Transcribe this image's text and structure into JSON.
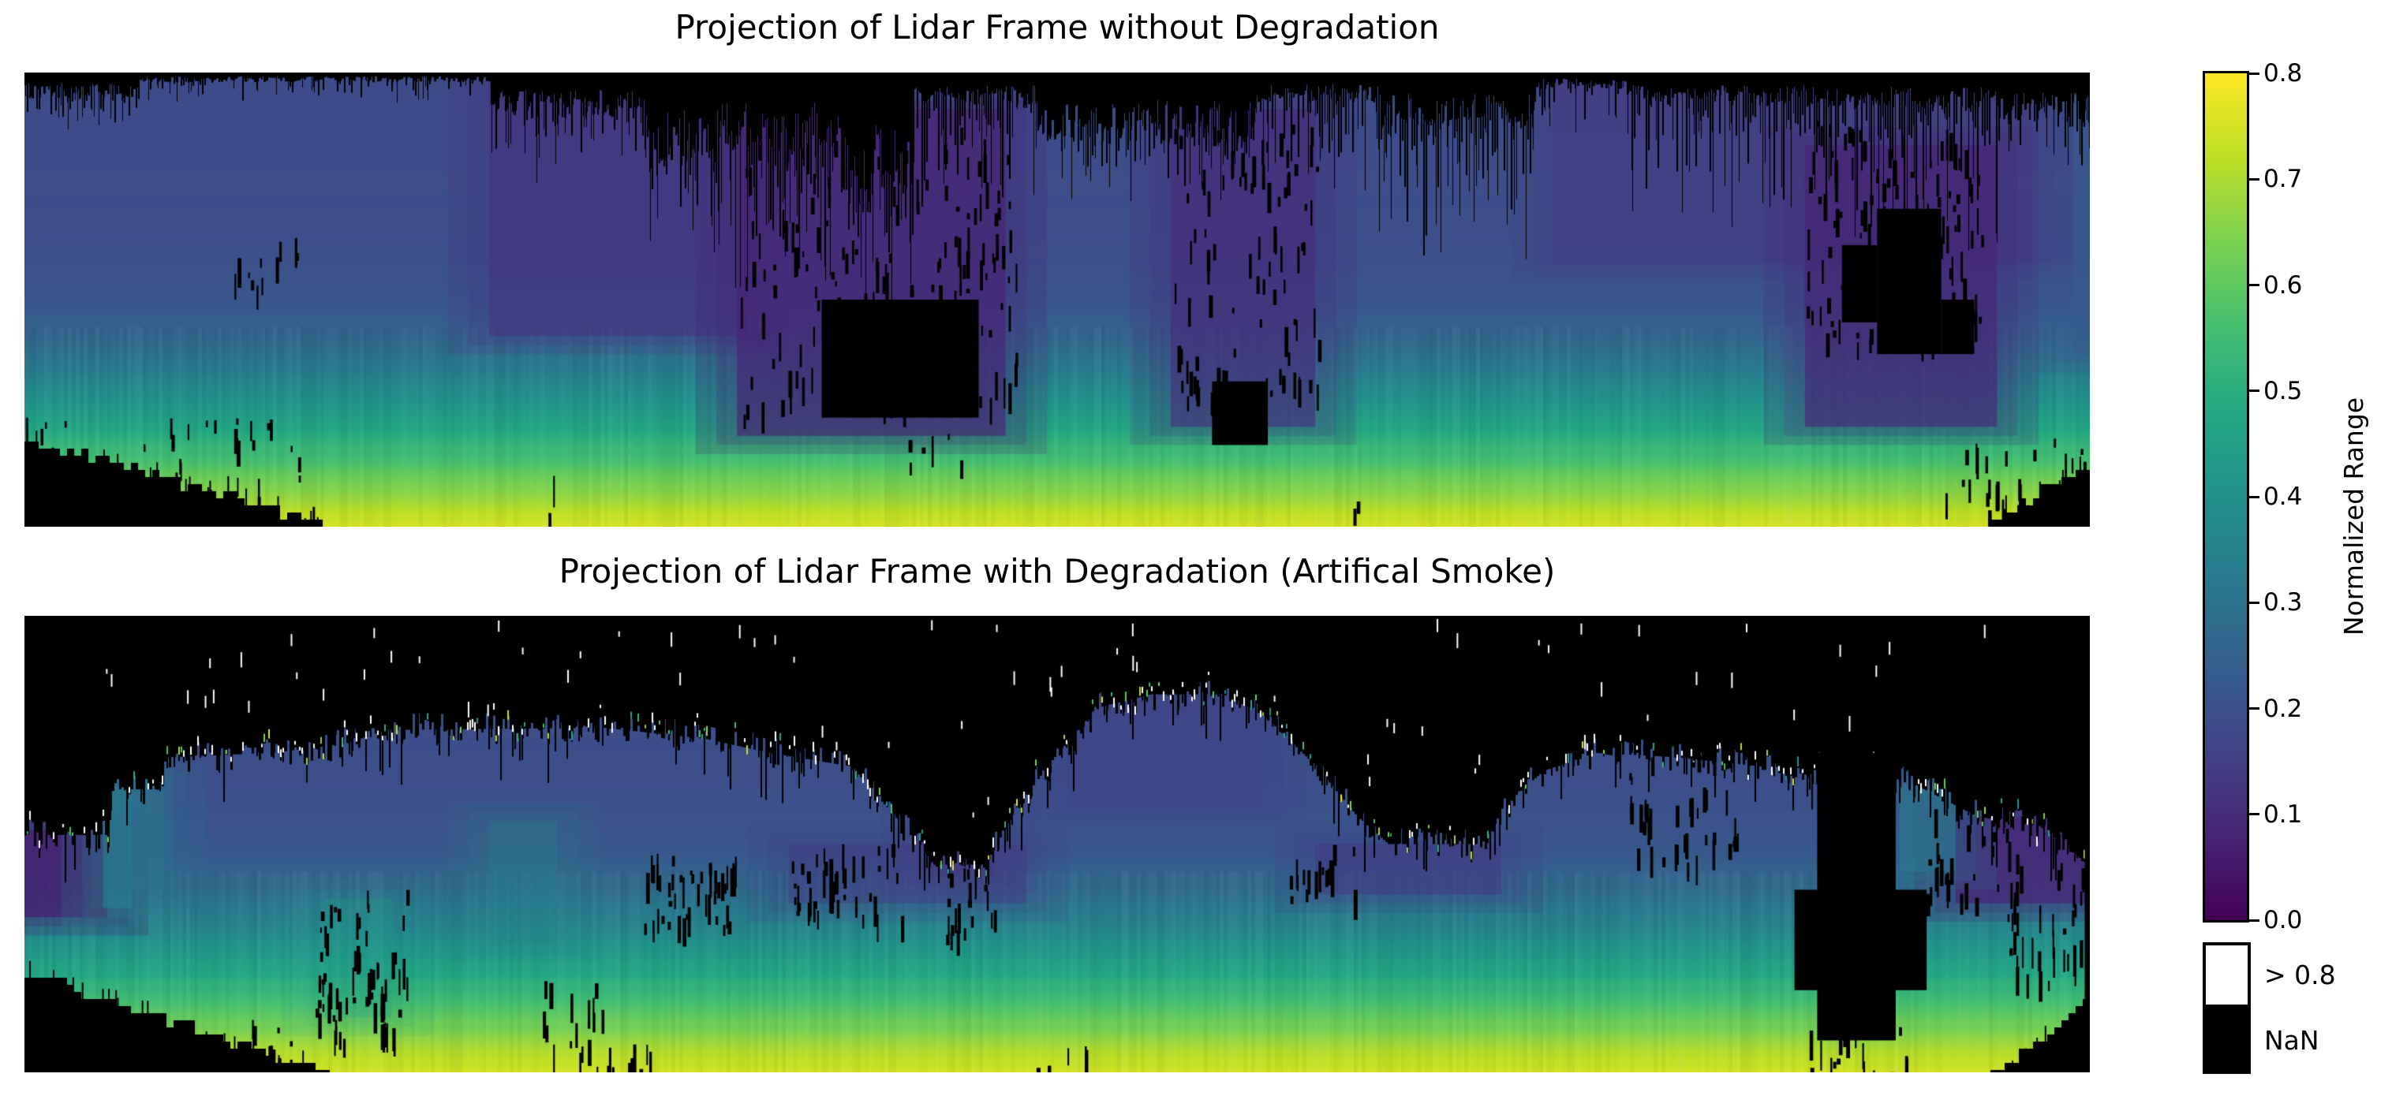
{
  "page": {
    "background": "#ffffff"
  },
  "chart_data": {
    "type": "heatmap",
    "colormap": "viridis",
    "colormap_stops": [
      "#440154",
      "#482475",
      "#414487",
      "#355f8d",
      "#2a788e",
      "#21918c",
      "#22a884",
      "#44bf70",
      "#7ad151",
      "#bddf26",
      "#fde725"
    ],
    "value_range": [
      0.0,
      0.8
    ],
    "grid": false,
    "axes_visible": false,
    "colorbar": {
      "label": "Normalized Range",
      "tick_values": [
        0.8,
        0.7,
        0.6,
        0.5,
        0.4,
        0.3,
        0.2,
        0.1,
        0.0
      ],
      "tick_labels": [
        "0.8",
        "0.7",
        "0.6",
        "0.5",
        "0.4",
        "0.3",
        "0.2",
        "0.1",
        "0.0"
      ],
      "over_label": "> 0.8",
      "nan_label": "NaN",
      "over_color": "#ffffff",
      "nan_color": "#000000"
    },
    "panels": [
      {
        "title": "Projection of Lidar Frame without Degradation",
        "seed": 12,
        "base_profile": [
          [
            0,
            0.18
          ],
          [
            0.4,
            0.195
          ],
          [
            0.52,
            0.22
          ],
          [
            0.6,
            0.28
          ],
          [
            0.68,
            0.36
          ],
          [
            0.76,
            0.45
          ],
          [
            0.84,
            0.55
          ],
          [
            0.9,
            0.63
          ],
          [
            0.95,
            0.7
          ],
          [
            1,
            0.755
          ]
        ],
        "value_patches": [
          {
            "x0": 0.74,
            "x1": 1.0,
            "y0": 0.0,
            "y1": 0.42,
            "v": 0.13,
            "a": 0.5
          },
          {
            "x0": 0.225,
            "x1": 0.35,
            "y0": 0.02,
            "y1": 0.58,
            "v": 0.115,
            "a": 0.7
          },
          {
            "x0": 0.345,
            "x1": 0.475,
            "y0": 0.08,
            "y1": 0.8,
            "v": 0.075,
            "a": 0.85
          },
          {
            "x0": 0.555,
            "x1": 0.625,
            "y0": 0.08,
            "y1": 0.78,
            "v": 0.1,
            "a": 0.8
          },
          {
            "x0": 0.862,
            "x1": 0.955,
            "y0": 0.16,
            "y1": 0.78,
            "v": 0.08,
            "a": 0.85
          },
          {
            "x0": 0.992,
            "x1": 1.0,
            "y0": 0.0,
            "y1": 0.62,
            "v": 0.23,
            "a": 0.85
          }
        ],
        "top_band": {
          "base": 0.02,
          "clusters": [
            {
              "x0": 0.0,
              "x1": 0.055,
              "solid": 0.04,
              "streak": 0.08,
              "d": 0.7
            },
            {
              "x0": 0.055,
              "x1": 0.225,
              "solid": 0.015,
              "streak": 0.05,
              "d": 0.35
            },
            {
              "x0": 0.225,
              "x1": 0.3,
              "solid": 0.07,
              "streak": 0.16,
              "d": 0.8
            },
            {
              "x0": 0.3,
              "x1": 0.335,
              "solid": 0.15,
              "streak": 0.22,
              "d": 0.85
            },
            {
              "x0": 0.335,
              "x1": 0.395,
              "solid": 0.12,
              "streak": 0.38,
              "d": 0.9
            },
            {
              "x0": 0.395,
              "x1": 0.43,
              "solid": 0.2,
              "streak": 0.3,
              "d": 0.9
            },
            {
              "x0": 0.43,
              "x1": 0.49,
              "solid": 0.05,
              "streak": 0.28,
              "d": 0.7
            },
            {
              "x0": 0.49,
              "x1": 0.595,
              "solid": 0.11,
              "streak": 0.16,
              "d": 0.8
            },
            {
              "x0": 0.595,
              "x1": 0.655,
              "solid": 0.045,
              "streak": 0.24,
              "d": 0.75
            },
            {
              "x0": 0.655,
              "x1": 0.73,
              "solid": 0.085,
              "streak": 0.33,
              "d": 0.85
            },
            {
              "x0": 0.73,
              "x1": 0.775,
              "solid": 0.025,
              "streak": 0.12,
              "d": 0.5
            },
            {
              "x0": 0.775,
              "x1": 0.875,
              "solid": 0.05,
              "streak": 0.28,
              "d": 0.8
            },
            {
              "x0": 0.875,
              "x1": 0.955,
              "solid": 0.055,
              "streak": 0.33,
              "d": 0.85
            },
            {
              "x0": 0.955,
              "x1": 1.0,
              "solid": 0.08,
              "streak": 0.12,
              "d": 0.7
            }
          ]
        },
        "black_rects": [
          {
            "x0": 0.386,
            "x1": 0.462,
            "y0": 0.5,
            "y1": 0.76
          },
          {
            "x0": 0.575,
            "x1": 0.602,
            "y0": 0.68,
            "y1": 0.82
          },
          {
            "x0": 0.897,
            "x1": 0.928,
            "y0": 0.3,
            "y1": 0.62
          },
          {
            "x0": 0.88,
            "x1": 0.897,
            "y0": 0.38,
            "y1": 0.55
          },
          {
            "x0": 0.928,
            "x1": 0.944,
            "y0": 0.5,
            "y1": 0.62
          }
        ],
        "clusters": [
          {
            "x0": 0.345,
            "x1": 0.48,
            "y0": 0.1,
            "y1": 0.76,
            "n": 150
          },
          {
            "x0": 0.555,
            "x1": 0.628,
            "y0": 0.1,
            "y1": 0.72,
            "n": 90
          },
          {
            "x0": 0.862,
            "x1": 0.948,
            "y0": 0.1,
            "y1": 0.6,
            "n": 120
          },
          {
            "x0": 0.1,
            "x1": 0.118,
            "y0": 0.38,
            "y1": 0.47,
            "n": 7
          },
          {
            "x0": 0.118,
            "x1": 0.132,
            "y0": 0.355,
            "y1": 0.43,
            "n": 4
          },
          {
            "x0": 0.428,
            "x1": 0.455,
            "y0": 0.78,
            "y1": 0.88,
            "n": 6
          },
          {
            "x0": 0.252,
            "x1": 0.258,
            "y0": 0.88,
            "y1": 0.97,
            "n": 2
          },
          {
            "x0": 0.46,
            "x1": 0.48,
            "y0": 0.62,
            "y1": 0.7,
            "n": 4
          },
          {
            "x0": 0.0,
            "x1": 0.14,
            "y0": 0.74,
            "y1": 0.98,
            "n": 45
          },
          {
            "x0": 0.93,
            "x1": 1.0,
            "y0": 0.8,
            "y1": 0.99,
            "n": 30
          },
          {
            "x0": 0.64,
            "x1": 0.648,
            "y0": 0.92,
            "y1": 0.99,
            "n": 2
          }
        ],
        "wedges": [
          {
            "side": "bl",
            "y_top": 0.8,
            "x_reach": 0.152
          },
          {
            "side": "br",
            "y_top": 0.86,
            "x_reach": 0.052
          }
        ]
      },
      {
        "title": "Projection of Lidar Frame with Degradation (Artifical Smoke)",
        "seed": 99,
        "base_profile": [
          [
            0,
            0.18
          ],
          [
            0.4,
            0.195
          ],
          [
            0.52,
            0.22
          ],
          [
            0.6,
            0.28
          ],
          [
            0.68,
            0.36
          ],
          [
            0.76,
            0.45
          ],
          [
            0.84,
            0.55
          ],
          [
            0.9,
            0.63
          ],
          [
            0.95,
            0.7
          ],
          [
            1,
            0.755
          ]
        ],
        "value_patches": [
          {
            "x0": 0.0,
            "x1": 0.04,
            "y0": 0.47,
            "y1": 0.66,
            "v": 0.06,
            "a": 0.9
          },
          {
            "x0": 0.038,
            "x1": 0.052,
            "y0": 0.375,
            "y1": 0.64,
            "v": 0.36,
            "a": 0.8
          },
          {
            "x0": 0.052,
            "x1": 0.068,
            "y0": 0.36,
            "y1": 0.6,
            "v": 0.3,
            "a": 0.75
          },
          {
            "x0": 0.37,
            "x1": 0.485,
            "y0": 0.5,
            "y1": 0.63,
            "v": 0.13,
            "a": 0.55
          },
          {
            "x0": 0.505,
            "x1": 0.6,
            "y0": 0.17,
            "y1": 0.42,
            "v": 0.155,
            "a": 0.5
          },
          {
            "x0": 0.625,
            "x1": 0.715,
            "y0": 0.5,
            "y1": 0.61,
            "v": 0.13,
            "a": 0.65
          },
          {
            "x0": 0.435,
            "x1": 0.47,
            "y0": 0.44,
            "y1": 0.57,
            "v": 0.12,
            "a": 0.5
          },
          {
            "x0": 0.935,
            "x1": 1.0,
            "y0": 0.44,
            "y1": 0.63,
            "v": 0.08,
            "a": 0.9
          },
          {
            "x0": 0.908,
            "x1": 0.935,
            "y0": 0.37,
            "y1": 0.56,
            "v": 0.33,
            "a": 0.7
          },
          {
            "x0": 0.225,
            "x1": 0.258,
            "y0": 0.45,
            "y1": 0.72,
            "v": 0.36,
            "a": 0.4
          },
          {
            "x0": 0.145,
            "x1": 0.178,
            "y0": 0.62,
            "y1": 0.88,
            "v": 0.44,
            "a": 0.35
          }
        ],
        "skyline": [
          [
            0,
            0.48
          ],
          [
            0.04,
            0.48
          ],
          [
            0.043,
            0.38
          ],
          [
            0.065,
            0.38
          ],
          [
            0.068,
            0.31
          ],
          [
            0.12,
            0.3
          ],
          [
            0.155,
            0.28
          ],
          [
            0.175,
            0.25
          ],
          [
            0.28,
            0.245
          ],
          [
            0.33,
            0.27
          ],
          [
            0.36,
            0.3
          ],
          [
            0.4,
            0.33
          ],
          [
            0.425,
            0.46
          ],
          [
            0.44,
            0.545
          ],
          [
            0.465,
            0.545
          ],
          [
            0.48,
            0.42
          ],
          [
            0.5,
            0.3
          ],
          [
            0.52,
            0.2
          ],
          [
            0.545,
            0.172
          ],
          [
            0.58,
            0.172
          ],
          [
            0.6,
            0.22
          ],
          [
            0.625,
            0.33
          ],
          [
            0.645,
            0.44
          ],
          [
            0.66,
            0.5
          ],
          [
            0.705,
            0.5
          ],
          [
            0.72,
            0.4
          ],
          [
            0.735,
            0.34
          ],
          [
            0.76,
            0.3
          ],
          [
            0.8,
            0.31
          ],
          [
            0.84,
            0.33
          ],
          [
            0.862,
            0.36
          ],
          [
            0.868,
            0.32
          ],
          [
            0.906,
            0.36
          ],
          [
            0.915,
            0.37
          ],
          [
            0.945,
            0.44
          ],
          [
            0.975,
            0.46
          ],
          [
            1,
            0.55
          ]
        ],
        "skyline_noise": 0.035,
        "boundary_sparkle": 0.3,
        "below_streak": 0.33,
        "white_specks": 70,
        "black_rects": [
          {
            "x0": 0.868,
            "x1": 0.906,
            "y0": 0.3,
            "y1": 0.93
          },
          {
            "x0": 0.857,
            "x1": 0.921,
            "y0": 0.6,
            "y1": 0.82
          },
          {
            "x0": 0.9975,
            "x1": 1.0,
            "y0": 0.45,
            "y1": 1.0
          }
        ],
        "clusters": [
          {
            "x0": 0.14,
            "x1": 0.185,
            "y0": 0.6,
            "y1": 0.93,
            "n": 70
          },
          {
            "x0": 0.37,
            "x1": 0.425,
            "y0": 0.5,
            "y1": 0.66,
            "n": 45
          },
          {
            "x0": 0.3,
            "x1": 0.345,
            "y0": 0.52,
            "y1": 0.68,
            "n": 45
          },
          {
            "x0": 0.445,
            "x1": 0.47,
            "y0": 0.55,
            "y1": 0.72,
            "n": 20
          },
          {
            "x0": 0.245,
            "x1": 0.28,
            "y0": 0.8,
            "y1": 0.97,
            "n": 16
          },
          {
            "x0": 0.105,
            "x1": 0.135,
            "y0": 0.87,
            "y1": 0.99,
            "n": 12
          },
          {
            "x0": 0.27,
            "x1": 0.305,
            "y0": 0.93,
            "y1": 1.0,
            "n": 10
          },
          {
            "x0": 0.61,
            "x1": 0.645,
            "y0": 0.5,
            "y1": 0.62,
            "n": 18
          },
          {
            "x0": 0.775,
            "x1": 0.83,
            "y0": 0.3,
            "y1": 0.55,
            "n": 40
          },
          {
            "x0": 0.92,
            "x1": 0.965,
            "y0": 0.42,
            "y1": 0.62,
            "n": 28
          },
          {
            "x0": 0.96,
            "x1": 1.0,
            "y0": 0.42,
            "y1": 0.8,
            "n": 45
          },
          {
            "x0": 0.862,
            "x1": 0.912,
            "y0": 0.9,
            "y1": 1.0,
            "n": 18
          },
          {
            "x0": 0.49,
            "x1": 0.52,
            "y0": 0.93,
            "y1": 1.0,
            "n": 5
          }
        ],
        "wedges": [
          {
            "side": "bl",
            "y_top": 0.78,
            "x_reach": 0.148
          },
          {
            "side": "br",
            "y_top": 0.85,
            "x_reach": 0.045
          }
        ]
      }
    ]
  }
}
